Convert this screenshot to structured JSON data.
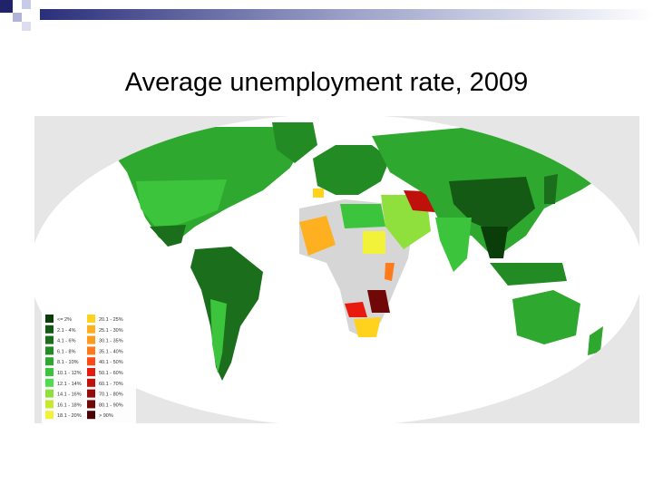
{
  "title": "Average unemployment rate, 2009",
  "map": {
    "legend": [
      {
        "label": "<= 2%",
        "color": "#0b3d0b"
      },
      {
        "label": "2.1 - 4%",
        "color": "#145a14"
      },
      {
        "label": "4.1 - 6%",
        "color": "#1b6e1b"
      },
      {
        "label": "6.1 - 8%",
        "color": "#238b23"
      },
      {
        "label": "8.1 - 10%",
        "color": "#2ea82e"
      },
      {
        "label": "10.1 - 12%",
        "color": "#3cc43c"
      },
      {
        "label": "12.1 - 14%",
        "color": "#4fdc4f"
      },
      {
        "label": "14.1 - 16%",
        "color": "#8fe03c"
      },
      {
        "label": "16.1 - 18%",
        "color": "#c8e832"
      },
      {
        "label": "18.1 - 20%",
        "color": "#f2f23a"
      },
      {
        "label": "20.1 - 25%",
        "color": "#ffd21e"
      },
      {
        "label": "25.1 - 30%",
        "color": "#ffb020"
      },
      {
        "label": "30.1 - 35%",
        "color": "#ff9a1e"
      },
      {
        "label": "35.1 - 40%",
        "color": "#ff7a1a"
      },
      {
        "label": "40.1 - 50%",
        "color": "#ff4a14"
      },
      {
        "label": "50.1 - 60%",
        "color": "#e81a10"
      },
      {
        "label": "60.1 - 70%",
        "color": "#c0100c"
      },
      {
        "label": "70.1 - 80%",
        "color": "#960c0a"
      },
      {
        "label": "80.1 - 90%",
        "color": "#700808"
      },
      {
        "label": "> 90%",
        "color": "#4a0404"
      }
    ]
  }
}
